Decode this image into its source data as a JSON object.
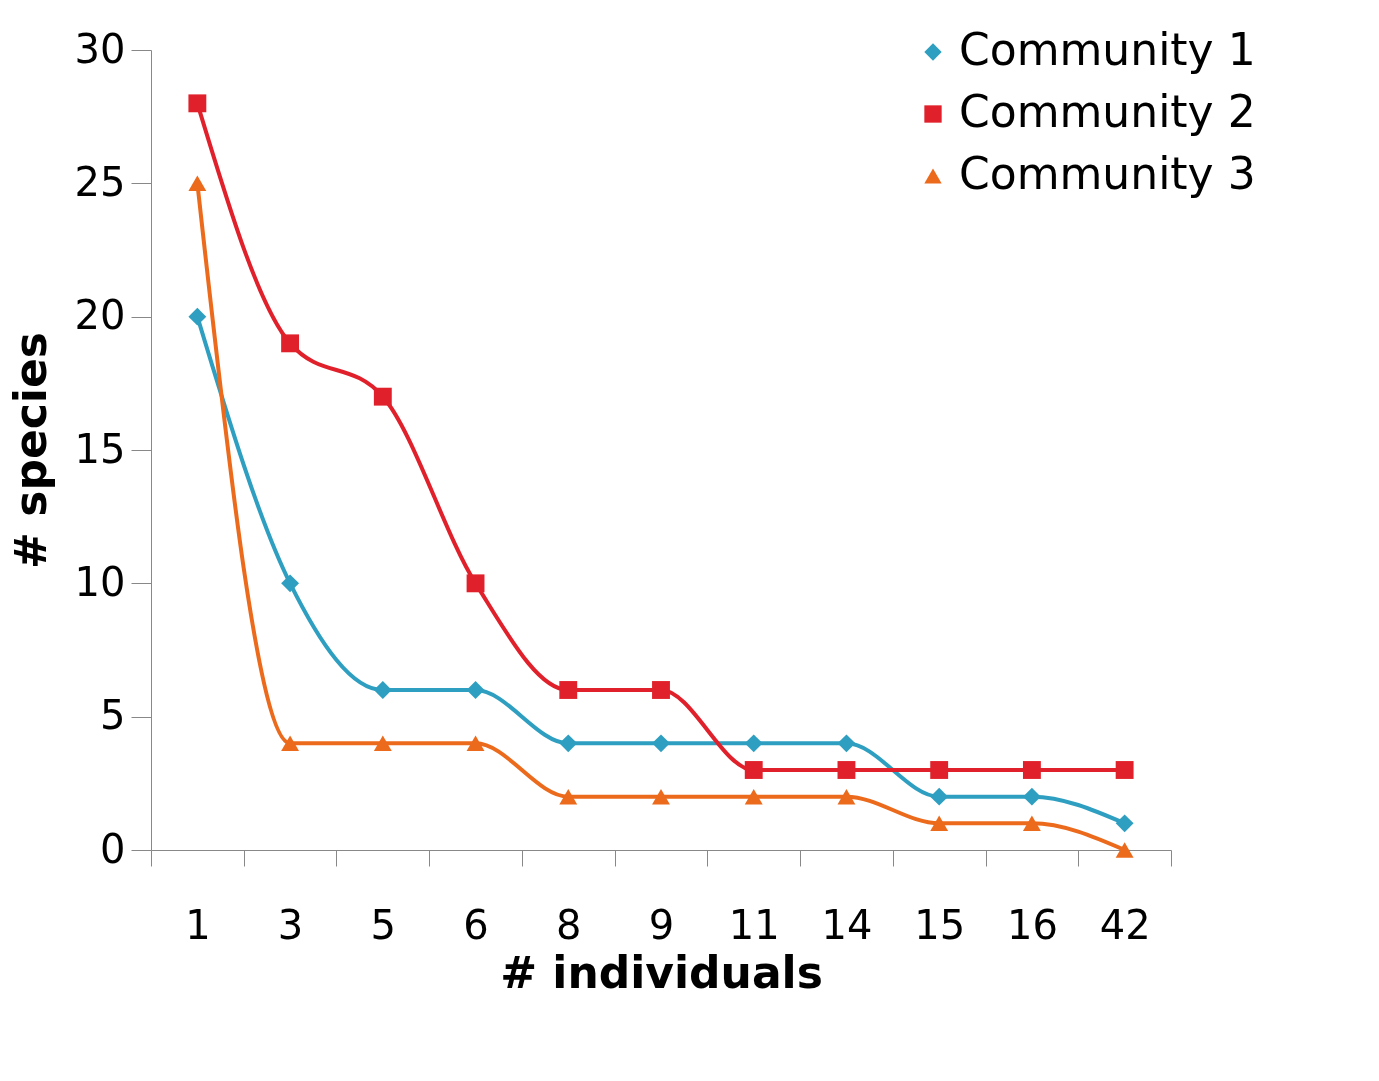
{
  "chart_data": {
    "type": "line",
    "xlabel": "# individuals",
    "ylabel": "# species",
    "categories": [
      "1",
      "3",
      "5",
      "6",
      "8",
      "9",
      "11",
      "14",
      "15",
      "16",
      "42"
    ],
    "series": [
      {
        "name": "Community 1",
        "color": "#2e9fc0",
        "marker": "diamond",
        "values": [
          20,
          10,
          6,
          6,
          4,
          4,
          4,
          4,
          2,
          2,
          1
        ]
      },
      {
        "name": "Community 2",
        "color": "#e0212b",
        "marker": "square",
        "values": [
          28,
          19,
          17,
          10,
          6,
          6,
          3,
          3,
          3,
          3,
          3
        ]
      },
      {
        "name": "Community 3",
        "color": "#ec6a1c",
        "marker": "triangle",
        "values": [
          25,
          4,
          4,
          4,
          2,
          2,
          2,
          2,
          1,
          1,
          0
        ]
      }
    ],
    "ylim": [
      0,
      30
    ],
    "yticks": [
      0,
      5,
      10,
      15,
      20,
      25,
      30
    ],
    "grid": false,
    "legend": "top right",
    "line_style": "solid"
  }
}
